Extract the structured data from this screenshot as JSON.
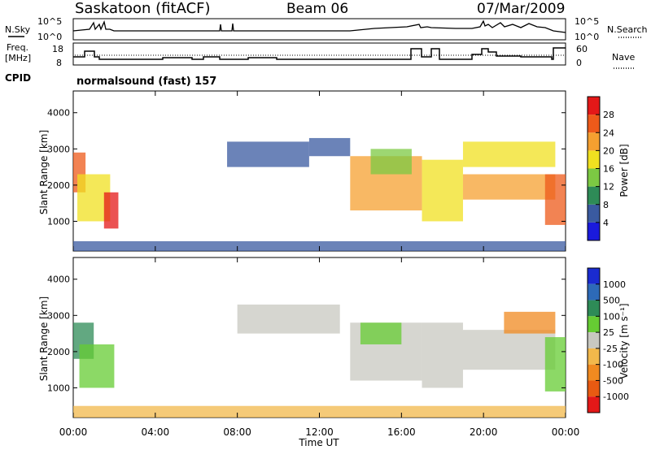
{
  "header": {
    "station": "Saskatoon (fitACF)",
    "beam": "Beam 06",
    "date": "07/Mar/2009"
  },
  "labels": {
    "nsky": "N.Sky",
    "nsearch": "N.Search",
    "freq_line1": "Freq.",
    "freq_line2": "[MHz]",
    "nave": "Nave",
    "cpid": "CPID",
    "cpid_value": "normalsound (fast) 157",
    "xlabel": "Time UT",
    "ylabel_power": "Slant Range [km]",
    "ylabel_velocity": "Slant Range [km]",
    "power_cbar_label": "Power [dB]",
    "velocity_cbar_label": "Velocity [m s⁻¹]"
  },
  "noise_ticks": [
    "10^5",
    "10^0"
  ],
  "freq_ticks": [
    "18",
    "8"
  ],
  "nave_ticks": [
    "60",
    "0"
  ],
  "power_colorbar": {
    "ticks": [
      "4",
      "8",
      "12",
      "16",
      "20",
      "24",
      "28"
    ],
    "colors": [
      "#1a1adc",
      "#3a5aa0",
      "#2e8b57",
      "#7cc943",
      "#f0e020",
      "#f5a030",
      "#ee5a1a",
      "#e41818"
    ]
  },
  "velocity_colorbar": {
    "ticks": [
      "1000",
      "500",
      "100",
      "25",
      "-25",
      "-100",
      "-500",
      "-1000"
    ],
    "colors": [
      "#1a2bd0",
      "#2d6ab8",
      "#2e8b57",
      "#66cc33",
      "#c8c8c0",
      "#f2b84b",
      "#f08a20",
      "#e85a12",
      "#e41818"
    ]
  },
  "chart_data": [
    {
      "type": "heatmap",
      "title": "Power",
      "xlabel": "Time UT",
      "ylabel": "Slant Range [km]",
      "x_ticks": [
        "00:00",
        "04:00",
        "08:00",
        "12:00",
        "16:00",
        "20:00",
        "00:00"
      ],
      "y_ticks": [
        "1000",
        "2000",
        "3000",
        "4000"
      ],
      "ylim": [
        180,
        4600
      ],
      "colorbar_label": "Power [dB]",
      "colorbar_ticks": [
        4,
        8,
        12,
        16,
        20,
        24,
        28
      ],
      "regions": [
        {
          "t0": 0.0,
          "t1": 0.6,
          "r0": 1800,
          "r1": 2900,
          "level": 6
        },
        {
          "t0": 0.2,
          "t1": 1.8,
          "r0": 1000,
          "r1": 2300,
          "level": 4
        },
        {
          "t0": 1.5,
          "t1": 2.2,
          "r0": 800,
          "r1": 1800,
          "level": 7
        },
        {
          "t0": 7.5,
          "t1": 11.5,
          "r0": 2500,
          "r1": 3200,
          "level": 1
        },
        {
          "t0": 11.5,
          "t1": 13.5,
          "r0": 2800,
          "r1": 3300,
          "level": 1
        },
        {
          "t0": 13.5,
          "t1": 17.0,
          "r0": 1300,
          "r1": 2800,
          "level": 5
        },
        {
          "t0": 14.5,
          "t1": 16.5,
          "r0": 2300,
          "r1": 3000,
          "level": 3
        },
        {
          "t0": 17.0,
          "t1": 19.0,
          "r0": 1000,
          "r1": 2700,
          "level": 4
        },
        {
          "t0": 19.0,
          "t1": 23.5,
          "r0": 1600,
          "r1": 2300,
          "level": 5
        },
        {
          "t0": 19.0,
          "t1": 23.5,
          "r0": 2500,
          "r1": 3200,
          "level": 4
        },
        {
          "t0": 23.0,
          "t1": 24.0,
          "r0": 900,
          "r1": 2300,
          "level": 6
        },
        {
          "t0": 0.0,
          "t1": 24.0,
          "r0": 180,
          "r1": 450,
          "level": 1
        }
      ]
    },
    {
      "type": "heatmap",
      "title": "Velocity",
      "xlabel": "Time UT",
      "ylabel": "Slant Range [km]",
      "x_ticks": [
        "00:00",
        "04:00",
        "08:00",
        "12:00",
        "16:00",
        "20:00",
        "00:00"
      ],
      "y_ticks": [
        "1000",
        "2000",
        "3000",
        "4000"
      ],
      "ylim": [
        180,
        4600
      ],
      "colorbar_label": "Velocity [m s⁻¹]",
      "colorbar_ticks": [
        1000,
        500,
        100,
        25,
        -25,
        -100,
        -500,
        -1000
      ],
      "regions": [
        {
          "t0": 0.0,
          "t1": 1.0,
          "r0": 1800,
          "r1": 2800,
          "level": 2
        },
        {
          "t0": 0.3,
          "t1": 2.0,
          "r0": 1000,
          "r1": 2200,
          "level": 3
        },
        {
          "t0": 8.0,
          "t1": 13.0,
          "r0": 2500,
          "r1": 3300,
          "level": 4
        },
        {
          "t0": 13.5,
          "t1": 17.0,
          "r0": 1200,
          "r1": 2800,
          "level": 4
        },
        {
          "t0": 14.0,
          "t1": 16.0,
          "r0": 2200,
          "r1": 2800,
          "level": 3
        },
        {
          "t0": 17.0,
          "t1": 19.0,
          "r0": 1000,
          "r1": 2800,
          "level": 4
        },
        {
          "t0": 19.0,
          "t1": 23.5,
          "r0": 1500,
          "r1": 2600,
          "level": 4
        },
        {
          "t0": 21.0,
          "t1": 23.5,
          "r0": 2500,
          "r1": 3100,
          "level": 6
        },
        {
          "t0": 23.0,
          "t1": 24.0,
          "r0": 900,
          "r1": 2400,
          "level": 3
        },
        {
          "t0": 0.0,
          "t1": 24.0,
          "r0": 180,
          "r1": 500,
          "level": 5
        }
      ]
    }
  ]
}
